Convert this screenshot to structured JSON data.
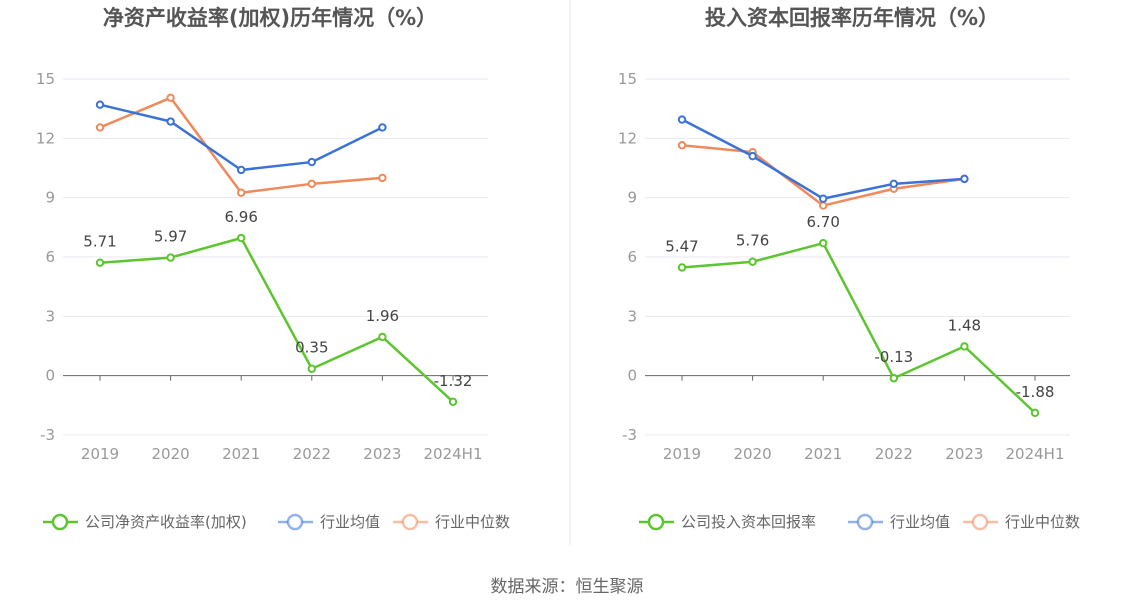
{
  "source": "数据来源：恒生聚源",
  "colors": {
    "company": "#5cc52f",
    "avg": "#3a72d8",
    "median": "#f0895b",
    "divider": "#e6e6e6",
    "grid": "#e8eaf0",
    "axis": "#666666"
  },
  "chart_data": [
    {
      "type": "line",
      "title": "净资产收益率(加权)历年情况（%）",
      "categories": [
        "2019",
        "2020",
        "2021",
        "2022",
        "2023",
        "2024H1"
      ],
      "yticks": [
        "-3",
        "0",
        "3",
        "6",
        "9",
        "12",
        "15"
      ],
      "ylim": [
        -3,
        15
      ],
      "grid": true,
      "legend_position": "bottom",
      "series": [
        {
          "name": "公司净资产收益率(加权)",
          "color": "#5cc52f",
          "values": [
            5.71,
            5.97,
            6.96,
            0.35,
            1.96,
            -1.32
          ],
          "labels": [
            "5.71",
            "5.97",
            "6.96",
            "0.35",
            "1.96",
            "-1.32"
          ]
        },
        {
          "name": "行业均值",
          "color": "#3a72d8",
          "values": [
            13.7,
            12.85,
            10.4,
            10.8,
            12.55,
            null
          ]
        },
        {
          "name": "行业中位数",
          "color": "#f0895b",
          "values": [
            12.55,
            14.05,
            9.25,
            9.7,
            10.0,
            null
          ]
        }
      ]
    },
    {
      "type": "line",
      "title": "投入资本回报率历年情况（%）",
      "categories": [
        "2019",
        "2020",
        "2021",
        "2022",
        "2023",
        "2024H1"
      ],
      "yticks": [
        "-3",
        "0",
        "3",
        "6",
        "9",
        "12",
        "15"
      ],
      "ylim": [
        -3,
        15
      ],
      "grid": true,
      "legend_position": "bottom",
      "series": [
        {
          "name": "公司投入资本回报率",
          "color": "#5cc52f",
          "values": [
            5.47,
            5.76,
            6.7,
            -0.13,
            1.48,
            -1.88
          ],
          "labels": [
            "5.47",
            "5.76",
            "6.70",
            "-0.13",
            "1.48",
            "-1.88"
          ]
        },
        {
          "name": "行业均值",
          "color": "#3a72d8",
          "values": [
            12.95,
            11.1,
            8.95,
            9.7,
            9.95,
            null
          ]
        },
        {
          "name": "行业中位数",
          "color": "#f0895b",
          "values": [
            11.65,
            11.3,
            8.6,
            9.45,
            9.95,
            null
          ]
        }
      ]
    }
  ]
}
